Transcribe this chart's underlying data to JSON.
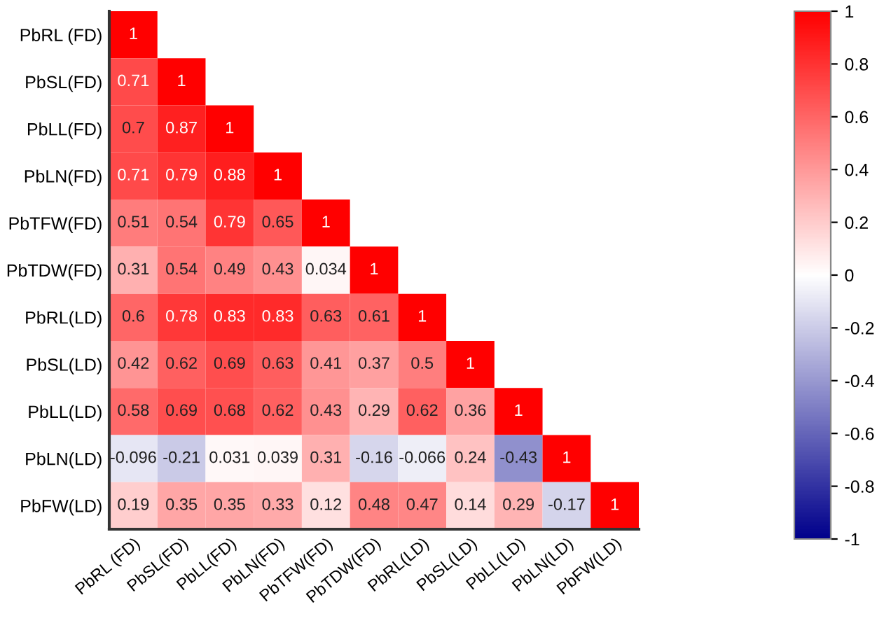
{
  "chart_data": {
    "type": "heatmap",
    "categories": [
      "PbRL (FD)",
      "PbSL(FD)",
      "PbLL(FD)",
      "PbLN(FD)",
      "PbTFW(FD)",
      "PbTDW(FD)",
      "PbRL(LD)",
      "PbSL(LD)",
      "PbLL(LD)",
      "PbLN(LD)",
      "PbFW(LD)"
    ],
    "y_categories": [
      "PbRL (FD)",
      "PbSL(FD)",
      "PbLL(FD)",
      "PbLN(FD)",
      "PbTFW(FD)",
      "PbTDW(FD)",
      "PbRL(LD)",
      "PbSL(LD)",
      "PbLL(LD)",
      "PbLN(LD)",
      "PbFW(LD)"
    ],
    "cells": [
      [
        1,
        null,
        null,
        null,
        null,
        null,
        null,
        null,
        null,
        null,
        null
      ],
      [
        0.71,
        1,
        null,
        null,
        null,
        null,
        null,
        null,
        null,
        null,
        null
      ],
      [
        0.7,
        0.87,
        1,
        null,
        null,
        null,
        null,
        null,
        null,
        null,
        null
      ],
      [
        0.71,
        0.79,
        0.88,
        1,
        null,
        null,
        null,
        null,
        null,
        null,
        null
      ],
      [
        0.51,
        0.54,
        0.79,
        0.65,
        1,
        null,
        null,
        null,
        null,
        null,
        null
      ],
      [
        0.31,
        0.54,
        0.49,
        0.43,
        0.034,
        1,
        null,
        null,
        null,
        null,
        null
      ],
      [
        0.6,
        0.78,
        0.83,
        0.83,
        0.63,
        0.61,
        1,
        null,
        null,
        null,
        null
      ],
      [
        0.42,
        0.62,
        0.69,
        0.63,
        0.41,
        0.37,
        0.5,
        1,
        null,
        null,
        null
      ],
      [
        0.58,
        0.69,
        0.68,
        0.62,
        0.43,
        0.29,
        0.62,
        0.36,
        1,
        null,
        null
      ],
      [
        -0.096,
        -0.21,
        0.031,
        0.039,
        0.31,
        -0.16,
        -0.066,
        0.24,
        -0.43,
        1,
        null
      ],
      [
        0.19,
        0.35,
        0.35,
        0.33,
        0.12,
        0.48,
        0.47,
        0.14,
        0.29,
        -0.17,
        1
      ]
    ],
    "data_labels": true,
    "clim": [
      -1,
      1
    ],
    "cticks": [
      1,
      0.8,
      0.6,
      0.4,
      0.2,
      0,
      -0.2,
      -0.4,
      -0.6,
      -0.8,
      -1
    ]
  }
}
